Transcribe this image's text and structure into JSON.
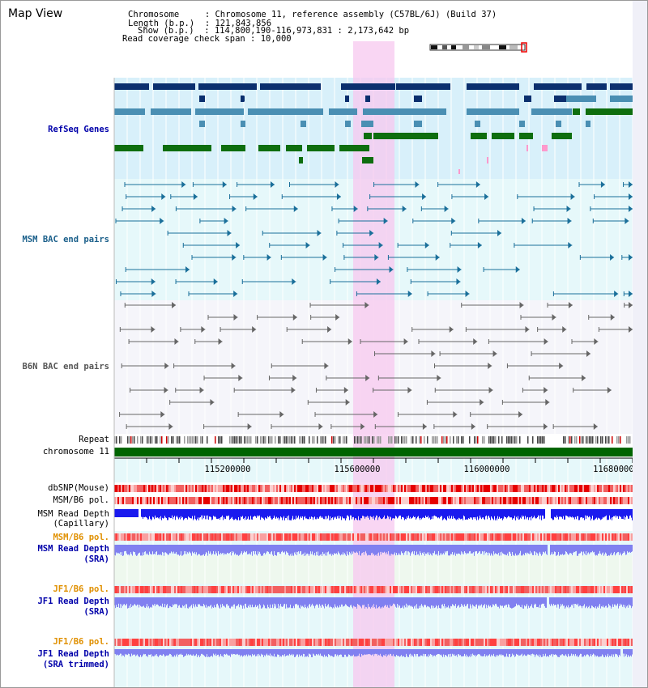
{
  "view_title": "Map View",
  "header": {
    "chromosome_key": "Chromosome",
    "chromosome_val": "Chromosome 11, reference assembly (C57BL/6J) (Build 37)",
    "length_key": "Length (b.p.)",
    "length_val": "121,843,856",
    "show_key": "Show (b.p.)",
    "show_val": "114,800,190-116,973,831 : 2,173,642 bp",
    "coverage_key": "Read coverage check span",
    "coverage_val": "10,000"
  },
  "tracks": {
    "refseq": "RefSeq Genes",
    "msm_bac": "MSM BAC end pairs",
    "b6n_bac": "B6N BAC end pairs",
    "repeat": "Repeat",
    "chromosome": "chromosome 11",
    "dbsnp": "dbSNP(Mouse)",
    "msm_b6_pol_1": "MSM/B6 pol.",
    "msm_depth_cap_1": "MSM Read Depth",
    "msm_depth_cap_2": "(Capillary)",
    "msm_b6_pol_2": "MSM/B6 pol.",
    "msm_depth_sra_1": "MSM Read Depth",
    "msm_depth_sra_2": "(SRA)",
    "jf1_b6_pol_1": "JF1/B6 pol.",
    "jf1_depth_sra_1": "JF1 Read Depth",
    "jf1_depth_sra_2": "(SRA)",
    "jf1_b6_pol_2": "JF1/B6 pol.",
    "jf1_depth_trim_1": "JF1 Read Depth",
    "jf1_depth_trim_2": "(SRA trimmed)"
  },
  "axis": {
    "ticks": [
      "115200000",
      "115600000",
      "116000000",
      "116400000",
      "116800000"
    ]
  },
  "colors": {
    "highlight": "#f7c8ef",
    "refseq_bg": "#d8f0fa",
    "msm_bg": "#e6f8fa",
    "b6n_bg": "#f5f5fa",
    "gene_navy": "#0b2f6e",
    "gene_steel": "#4a8fb3",
    "gene_green": "#0e6e0e",
    "chrom_green": "#006400"
  }
}
